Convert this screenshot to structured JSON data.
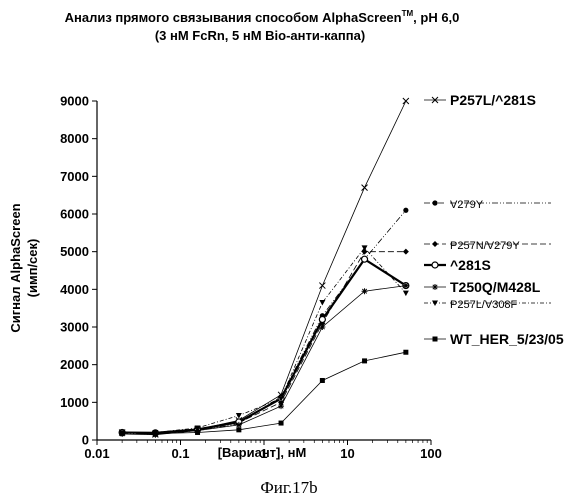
{
  "chart_data": {
    "type": "line",
    "title_line1": "Анализ прямого связывания  способом  AlphaScreen",
    "title_tm": "TM",
    "title_line1_suffix": ", pH 6,0",
    "title_line2": "(3 нМ FcRn, 5 нМ Bio-анти-каппа)",
    "xlabel": "[Вариант], нМ",
    "ylabel_line1": "Сигнал AlphaScreen",
    "ylabel_line2": "(имп/сек)",
    "xscale": "log",
    "xlim": [
      0.01,
      100
    ],
    "ylim": [
      0,
      9000
    ],
    "xticks": [
      "0.01",
      "0.1",
      "1",
      "10",
      "100"
    ],
    "yticks": [
      "0",
      "1000",
      "2000",
      "3000",
      "4000",
      "5000",
      "6000",
      "7000",
      "8000",
      "9000"
    ],
    "x": [
      0.02,
      0.05,
      0.16,
      0.5,
      1.6,
      5,
      16,
      50
    ],
    "series": [
      {
        "name": "P257L/^281S",
        "marker": "x",
        "dash": "",
        "width": 0.8,
        "style": "big",
        "values": [
          200,
          150,
          280,
          520,
          1200,
          4100,
          6700,
          9000
        ]
      },
      {
        "name": "V279Y",
        "marker": "dot",
        "dash": "6 2 1 2 1 2",
        "width": 0.8,
        "style": "small",
        "values": [
          180,
          150,
          250,
          430,
          1150,
          3300,
          4800,
          6100
        ]
      },
      {
        "name": "P257N/V279Y",
        "marker": "diamond",
        "dash": "6 3",
        "width": 0.8,
        "style": "small",
        "values": [
          200,
          180,
          270,
          460,
          1000,
          3100,
          5000,
          5000
        ]
      },
      {
        "name": "^281S",
        "marker": "circle",
        "dash": "",
        "width": 2.2,
        "style": "big",
        "values": [
          200,
          190,
          280,
          480,
          1100,
          3200,
          4800,
          4100
        ]
      },
      {
        "name": "T250Q/M428L",
        "marker": "star",
        "dash": "",
        "width": 0.8,
        "style": "big",
        "values": [
          160,
          140,
          250,
          400,
          900,
          3000,
          3950,
          4100
        ]
      },
      {
        "name": "P257L/V308F",
        "marker": "triangle",
        "dash": "4 2 1 2",
        "width": 0.8,
        "style": "small",
        "values": [
          190,
          200,
          320,
          650,
          1100,
          3650,
          5100,
          3900
        ]
      },
      {
        "name": "WT_HER_5/23/05",
        "marker": "square",
        "dash": "",
        "width": 0.8,
        "style": "big",
        "values": [
          190,
          170,
          200,
          270,
          450,
          1580,
          2100,
          2330
        ]
      }
    ]
  },
  "caption": "Фиг.17b"
}
